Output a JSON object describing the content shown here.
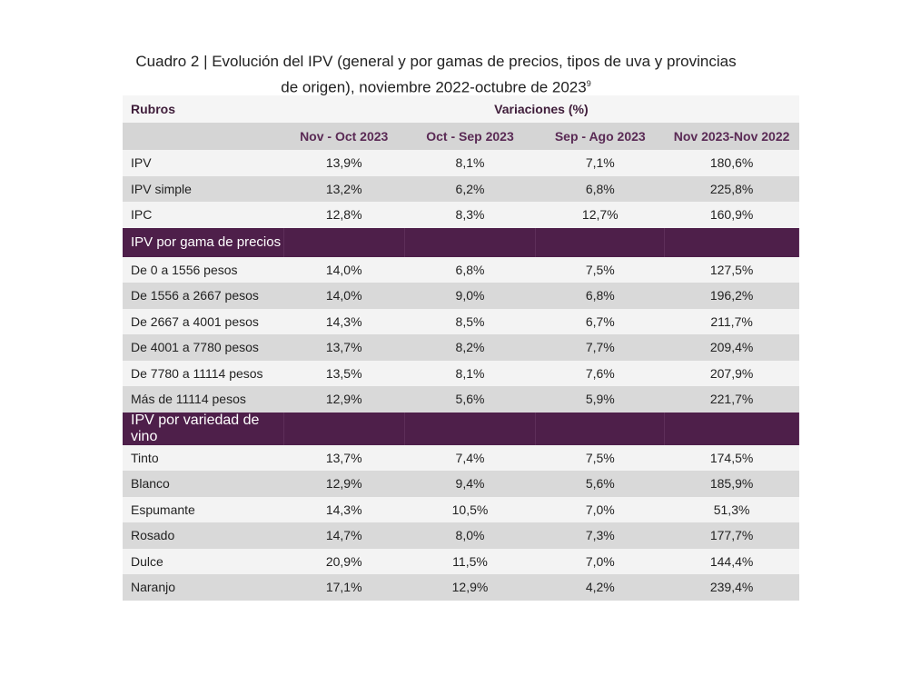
{
  "title": {
    "line1": "Cuadro 2 | Evolución del IPV (general y por gamas de precios, tipos de uva y provincias",
    "line2": "de origen), noviembre 2022-octubre de 2023",
    "footnote": "9"
  },
  "table": {
    "rubros_label": "Rubros",
    "variaciones_label": "Variaciones (%)",
    "columns": [
      "Nov - Oct 2023",
      "Oct - Sep 2023",
      "Sep - Ago 2023",
      "Nov 2023-Nov 2022"
    ],
    "groups": [
      {
        "section": null,
        "rows": [
          {
            "label": "IPV",
            "values": [
              "13,9%",
              "8,1%",
              "7,1%",
              "180,6%"
            ]
          },
          {
            "label": "IPV simple",
            "values": [
              "13,2%",
              "6,2%",
              "6,8%",
              "225,8%"
            ]
          },
          {
            "label": "IPC",
            "values": [
              "12,8%",
              "8,3%",
              "12,7%",
              "160,9%"
            ]
          }
        ]
      },
      {
        "section": "IPV por gama de precios",
        "rows": [
          {
            "label": "De 0 a 1556 pesos",
            "values": [
              "14,0%",
              "6,8%",
              "7,5%",
              "127,5%"
            ]
          },
          {
            "label": "De 1556 a 2667 pesos",
            "values": [
              "14,0%",
              "9,0%",
              "6,8%",
              "196,2%"
            ]
          },
          {
            "label": "De 2667 a 4001 pesos",
            "values": [
              "14,3%",
              "8,5%",
              "6,7%",
              "211,7%"
            ]
          },
          {
            "label": "De 4001 a 7780 pesos",
            "values": [
              "13,7%",
              "8,2%",
              "7,7%",
              "209,4%"
            ]
          },
          {
            "label": "De 7780 a 11114 pesos",
            "values": [
              "13,5%",
              "8,1%",
              "7,6%",
              "207,9%"
            ]
          },
          {
            "label": "Más de 11114 pesos",
            "values": [
              "12,9%",
              "5,6%",
              "5,9%",
              "221,7%"
            ]
          }
        ]
      },
      {
        "section": "IPV por variedad de vino",
        "rows": [
          {
            "label": "Tinto",
            "values": [
              "13,7%",
              "7,4%",
              "7,5%",
              "174,5%"
            ]
          },
          {
            "label": "Blanco",
            "values": [
              "12,9%",
              "9,4%",
              "5,6%",
              "185,9%"
            ]
          },
          {
            "label": "Espumante",
            "values": [
              "14,3%",
              "10,5%",
              "7,0%",
              "51,3%"
            ]
          },
          {
            "label": "Rosado",
            "values": [
              "14,7%",
              "8,0%",
              "7,3%",
              "177,7%"
            ]
          },
          {
            "label": "Dulce",
            "values": [
              "20,9%",
              "11,5%",
              "7,0%",
              "144,4%"
            ]
          },
          {
            "label": "Naranjo",
            "values": [
              "17,1%",
              "12,9%",
              "4,2%",
              "239,4%"
            ]
          }
        ]
      }
    ]
  }
}
